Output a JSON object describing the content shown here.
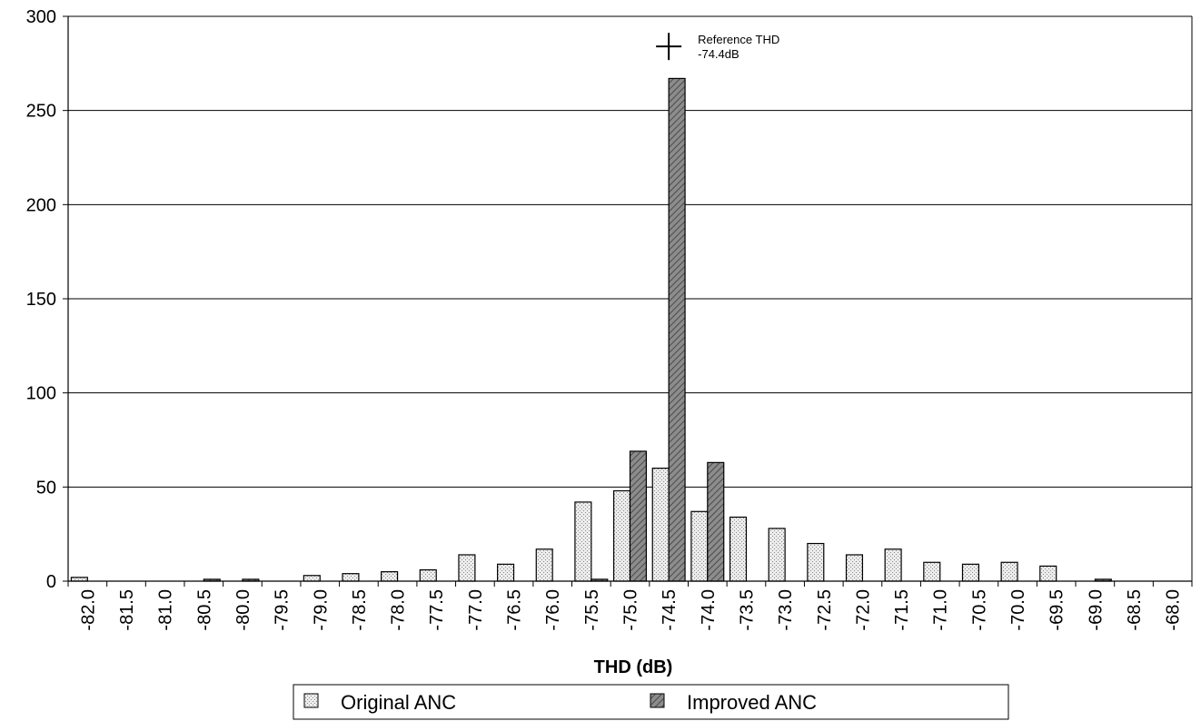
{
  "chart_data": {
    "type": "bar",
    "title": "",
    "xlabel": "THD (dB)",
    "ylabel": "",
    "ylim": [
      0,
      300
    ],
    "yticks": [
      0,
      50,
      100,
      150,
      200,
      250,
      300
    ],
    "grid": "horizontal",
    "legend_position": "bottom",
    "categories": [
      "-82.0",
      "-81.5",
      "-81.0",
      "-80.5",
      "-80.0",
      "-79.5",
      "-79.0",
      "-78.5",
      "-78.0",
      "-77.5",
      "-77.0",
      "-76.5",
      "-76.0",
      "-75.5",
      "-75.0",
      "-74.5",
      "-74.0",
      "-73.5",
      "-73.0",
      "-72.5",
      "-72.0",
      "-71.5",
      "-71.0",
      "-70.5",
      "-70.0",
      "-69.5",
      "-69.0",
      "-68.5",
      "-68.0"
    ],
    "series": [
      {
        "name": "Original ANC",
        "color": "#e0e0e0",
        "values": [
          2,
          0,
          0,
          0,
          0,
          0,
          3,
          4,
          5,
          6,
          14,
          9,
          17,
          42,
          48,
          60,
          37,
          34,
          28,
          20,
          14,
          17,
          10,
          9,
          10,
          8,
          0,
          0,
          0
        ]
      },
      {
        "name": "Improved ANC",
        "color": "#7a7a7a",
        "values": [
          0,
          0,
          0,
          1,
          1,
          0,
          0,
          0,
          0,
          0,
          0,
          0,
          0,
          1,
          69,
          267,
          63,
          0,
          0,
          0,
          0,
          0,
          0,
          0,
          0,
          0,
          1,
          0,
          0
        ]
      }
    ],
    "annotations": [
      {
        "category": "-74.5",
        "value": 284,
        "lines": [
          "Reference THD",
          "-74.4dB"
        ],
        "marker": "plus"
      }
    ]
  }
}
